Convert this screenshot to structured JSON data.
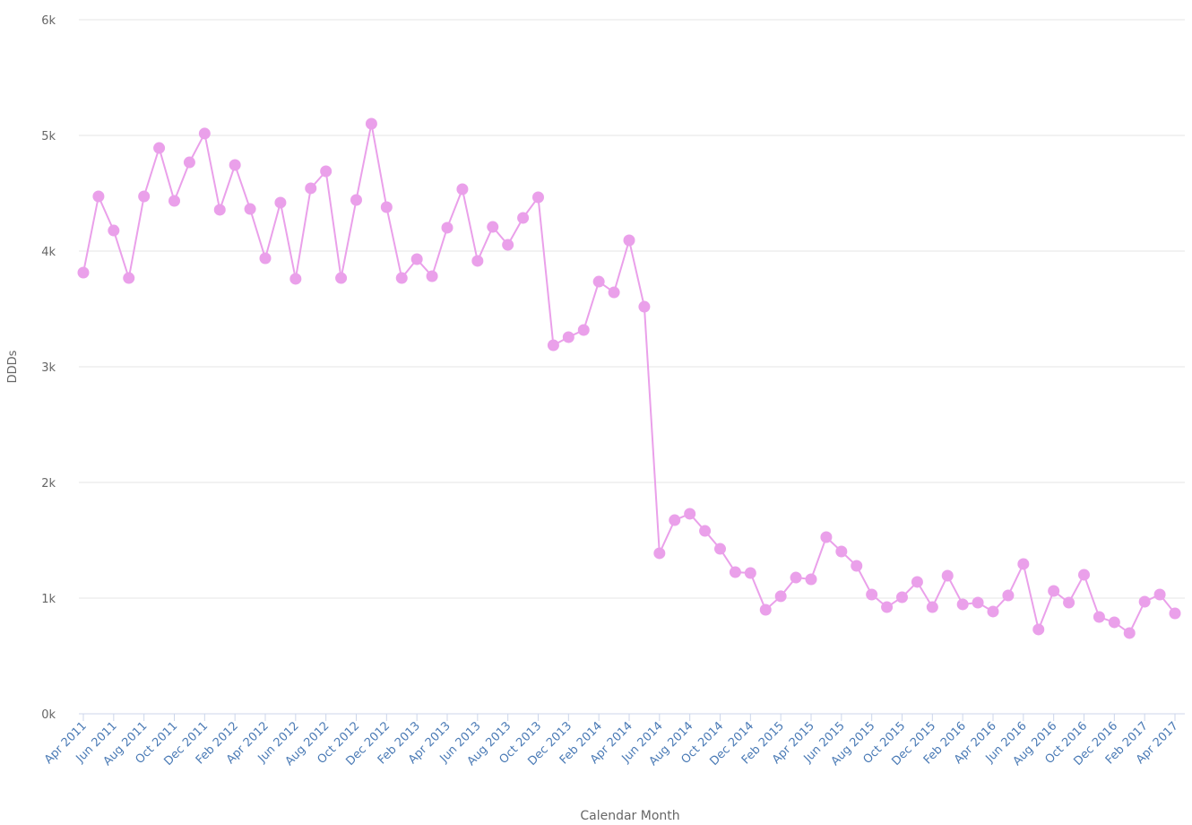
{
  "chart_data": {
    "type": "line",
    "x_label": "Calendar Month",
    "y_label": "DDDs",
    "categories": [
      "Apr 2011",
      null,
      "Jun 2011",
      null,
      "Aug 2011",
      null,
      "Oct 2011",
      null,
      "Dec 2011",
      null,
      "Feb 2012",
      null,
      "Apr 2012",
      null,
      "Jun 2012",
      null,
      "Aug 2012",
      null,
      "Oct 2012",
      null,
      "Dec 2012",
      null,
      "Feb 2013",
      null,
      "Apr 2013",
      null,
      "Jun 2013",
      null,
      "Aug 2013",
      null,
      "Oct 2013",
      null,
      "Dec 2013",
      null,
      "Feb 2014",
      null,
      "Apr 2014",
      null,
      "Jun 2014",
      null,
      "Aug 2014",
      null,
      "Oct 2014",
      null,
      "Dec 2014",
      null,
      "Feb 2015",
      null,
      "Apr 2015",
      null,
      "Jun 2015",
      null,
      "Aug 2015",
      null,
      "Oct 2015",
      null,
      "Dec 2015",
      null,
      "Feb 2016",
      null,
      "Apr 2016",
      null,
      "Jun 2016",
      null,
      "Aug 2016",
      null,
      "Oct 2016",
      null,
      "Dec 2016",
      null,
      "Feb 2017",
      null,
      "Apr 2017"
    ],
    "series": [
      {
        "name": "DDDs",
        "color": "#eaa0ea",
        "values": [
          3814,
          4473,
          4178,
          3767,
          4473,
          4891,
          4434,
          4767,
          5016,
          4357,
          4744,
          4364,
          3938,
          4419,
          3760,
          4543,
          4690,
          3767,
          4442,
          5101,
          4380,
          3767,
          3930,
          3783,
          4202,
          4535,
          3915,
          4209,
          4054,
          4287,
          4465,
          3186,
          3256,
          3318,
          3736,
          3643,
          4093,
          3519,
          1388,
          1674,
          1729,
          1581,
          1426,
          1225,
          1217,
          899,
          1016,
          1178,
          1163,
          1527,
          1403,
          1279,
          1031,
          922,
          1008,
          1140,
          922,
          1194,
          946,
          961,
          884,
          1023,
          1295,
          729,
          1062,
          961,
          1202,
          837,
          791,
          698,
          969,
          1031,
          868
        ]
      }
    ],
    "ylim": [
      0,
      6000
    ],
    "yticks": [
      {
        "value": 0,
        "label": "0k"
      },
      {
        "value": 1000,
        "label": "1k"
      },
      {
        "value": 2000,
        "label": "2k"
      },
      {
        "value": 3000,
        "label": "3k"
      },
      {
        "value": 4000,
        "label": "4k"
      },
      {
        "value": 5000,
        "label": "5k"
      },
      {
        "value": 6000,
        "label": "6k"
      }
    ],
    "grid": true
  }
}
